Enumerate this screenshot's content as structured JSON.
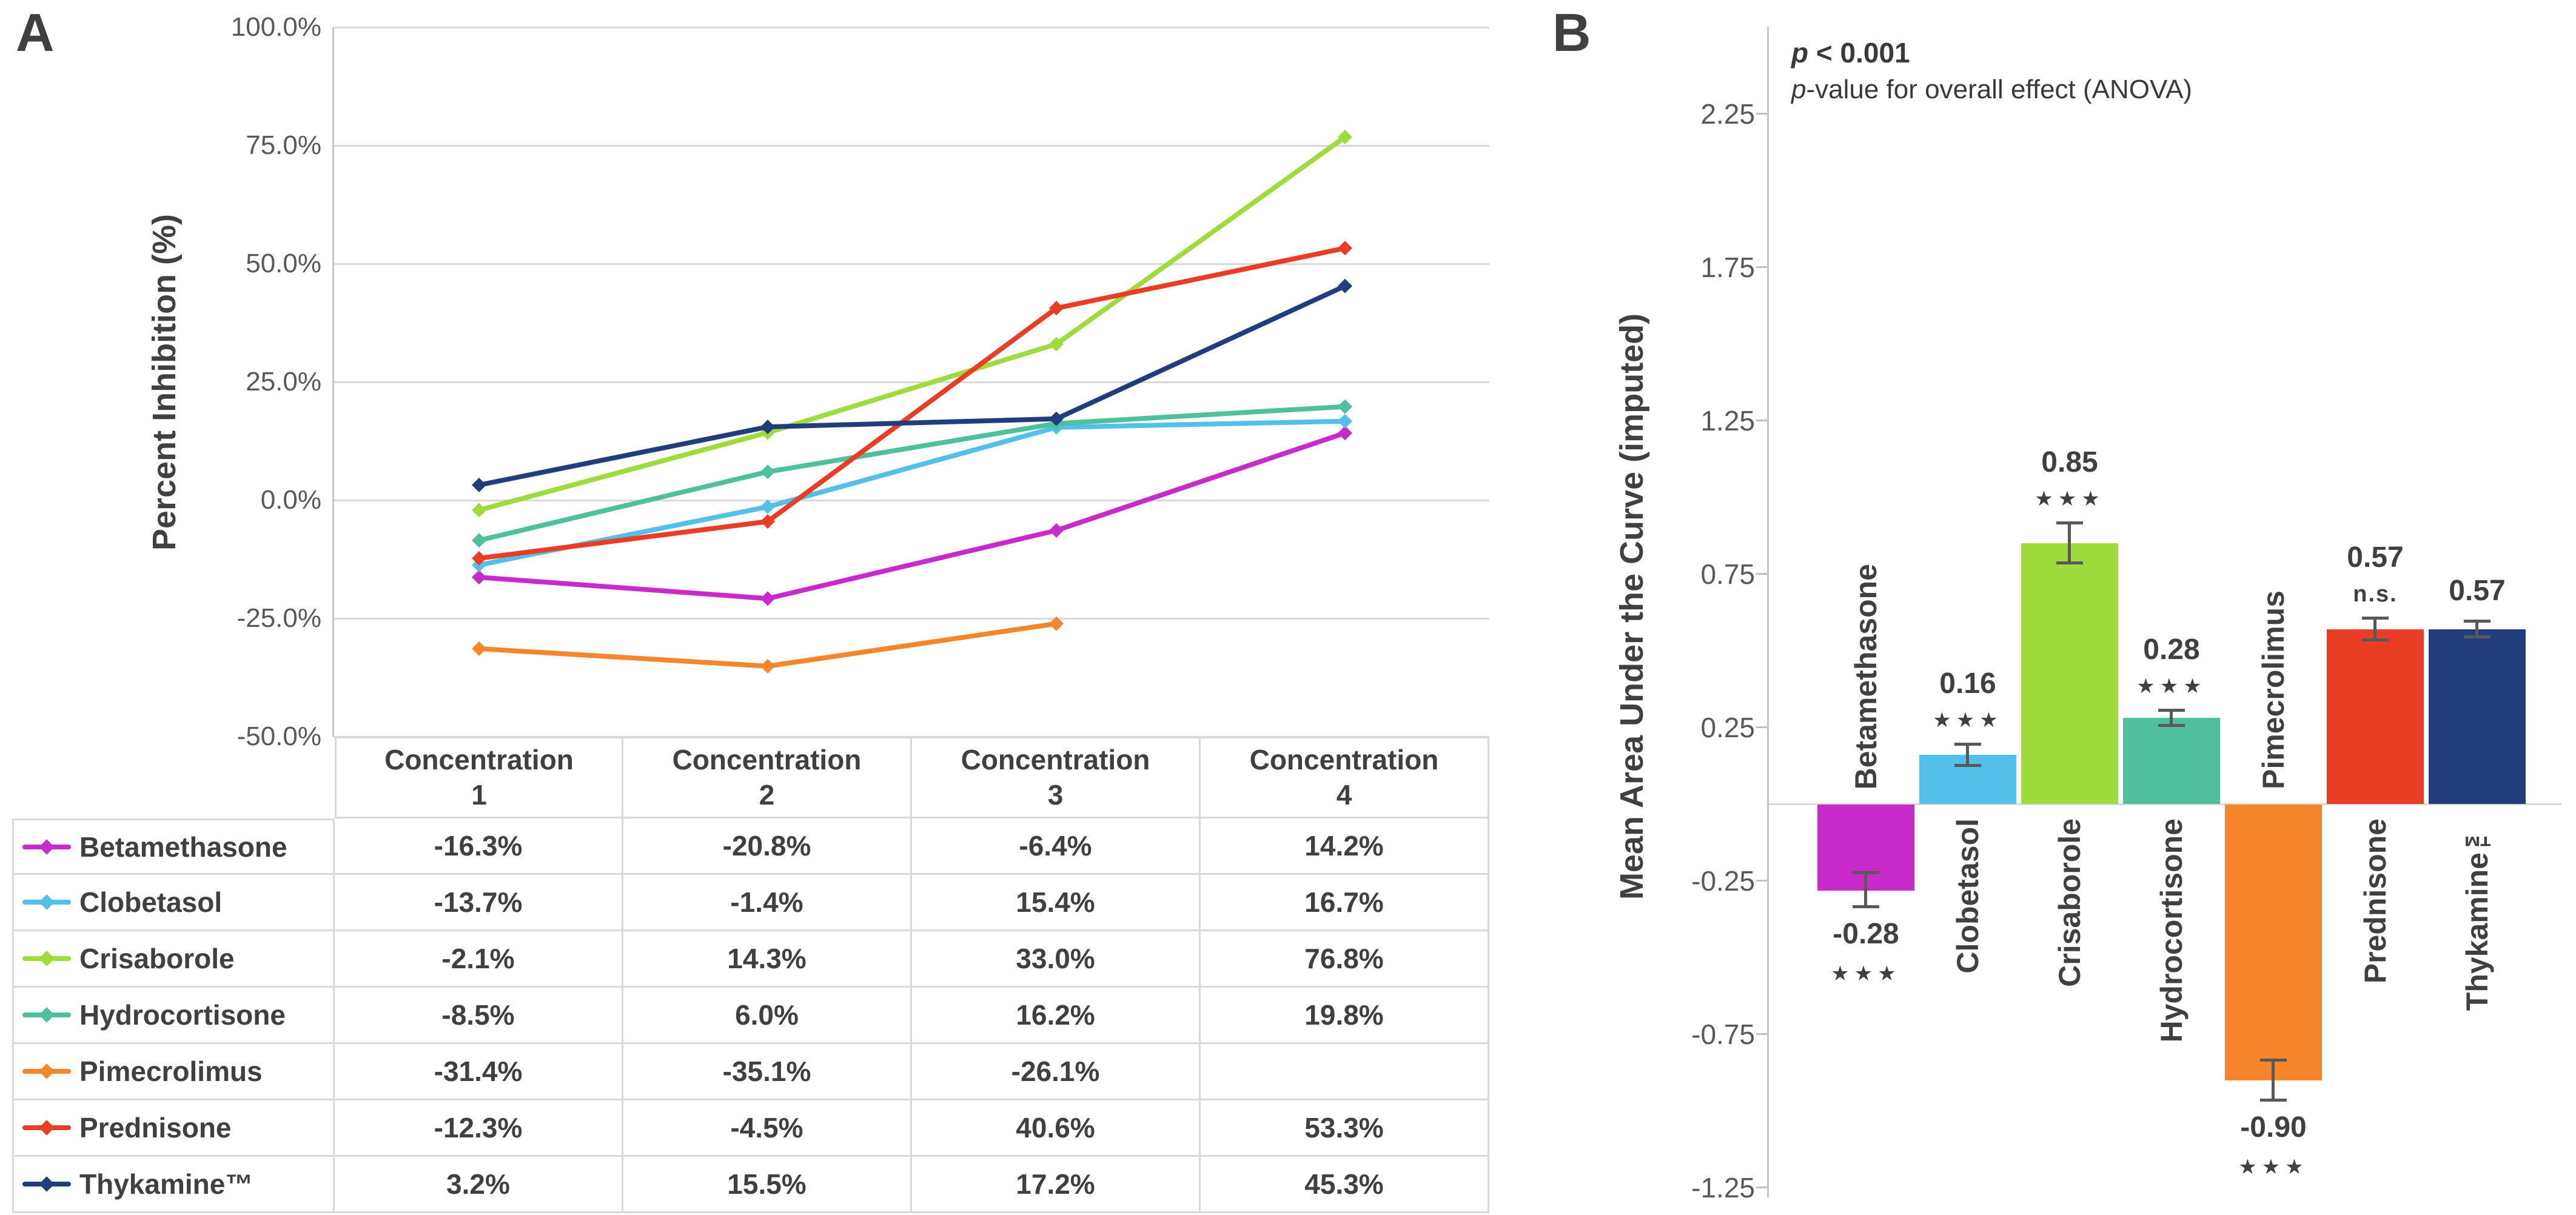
{
  "figure": {
    "panelA": {
      "label": "A",
      "y_axis_title": "Percent Inhibition (%)",
      "y_tick_labels": [
        "100.0%",
        "75.0%",
        "50.0%",
        "25.0%",
        "0.0%",
        "-25.0%",
        "-50.0%"
      ]
    },
    "panelB": {
      "label": "B",
      "p_headline": {
        "italic_part": "p",
        "rest": " < 0.001"
      },
      "p_subline": {
        "italic_part": "p",
        "rest": "-value for overall effect (ANOVA)"
      },
      "y_axis_title": "Mean Area Under the Curve (imputed)",
      "y_tick_labels": [
        "2.25",
        "1.75",
        "1.25",
        "0.75",
        "0.25",
        "-0.25",
        "-0.75",
        "-1.25"
      ]
    }
  },
  "chart_data": [
    {
      "panel": "A",
      "type": "line",
      "title": "",
      "xlabel": "",
      "ylabel": "Percent Inhibition (%)",
      "categories": [
        "Concentration 1",
        "Concentration 2",
        "Concentration 3",
        "Concentration 4"
      ],
      "ylim": [
        -50,
        100
      ],
      "y_ticks_percent": [
        100,
        75,
        50,
        25,
        0,
        -25,
        -50
      ],
      "grid": true,
      "legend_position": "table-left",
      "series": [
        {
          "name": "Betamethasone",
          "color": "#C92BCB",
          "values": [
            -16.3,
            -20.8,
            -6.4,
            14.2
          ],
          "display": [
            "-16.3%",
            "-20.8%",
            "-6.4%",
            "14.2%"
          ]
        },
        {
          "name": "Clobetasol",
          "color": "#52C0E8",
          "values": [
            -13.7,
            -1.4,
            15.4,
            16.7
          ],
          "display": [
            "-13.7%",
            "-1.4%",
            "15.4%",
            "16.7%"
          ]
        },
        {
          "name": "Crisaborole",
          "color": "#9EDB3C",
          "values": [
            -2.1,
            14.3,
            33.0,
            76.8
          ],
          "display": [
            "-2.1%",
            "14.3%",
            "33.0%",
            "76.8%"
          ]
        },
        {
          "name": "Hydrocortisone",
          "color": "#4FBF9D",
          "values": [
            -8.5,
            6.0,
            16.2,
            19.8
          ],
          "display": [
            "-8.5%",
            "6.0%",
            "16.2%",
            "19.8%"
          ]
        },
        {
          "name": "Pimecrolimus",
          "color": "#F6862B",
          "values": [
            -31.4,
            -35.1,
            -26.1,
            null
          ],
          "display": [
            "-31.4%",
            "-35.1%",
            "-26.1%",
            ""
          ]
        },
        {
          "name": "Prednisone",
          "color": "#E93D26",
          "values": [
            -12.3,
            -4.5,
            40.6,
            53.3
          ],
          "display": [
            "-12.3%",
            "-4.5%",
            "40.6%",
            "53.3%"
          ]
        },
        {
          "name": "Thykamine™",
          "color": "#213D7C",
          "values": [
            3.2,
            15.5,
            17.2,
            45.3
          ],
          "display": [
            "3.2%",
            "15.5%",
            "17.2%",
            "45.3%"
          ]
        }
      ]
    },
    {
      "panel": "B",
      "type": "bar",
      "title": "",
      "xlabel": "",
      "ylabel": "Mean Area Under the Curve (imputed)",
      "ylim": [
        -1.25,
        2.25
      ],
      "y_ticks": [
        2.25,
        1.75,
        1.25,
        0.75,
        0.25,
        -0.25,
        -0.75,
        -1.25
      ],
      "annotation": {
        "headline": "p < 0.001",
        "subtext": "p-value for overall effect (ANOVA)"
      },
      "categories": [
        "Betamethasone",
        "Clobetasol",
        "Crisaborole",
        "Hydrocortisone",
        "Pimecrolimus",
        "Prednisone",
        "Thykamine™"
      ],
      "values": [
        -0.28,
        0.16,
        0.85,
        0.28,
        -0.9,
        0.57,
        0.57
      ],
      "value_labels": [
        "-0.28",
        "0.16",
        "0.85",
        "0.28",
        "-0.90",
        "0.57",
        "0.57"
      ],
      "significance": [
        "***",
        "***",
        "***",
        "***",
        "***",
        "n.s.",
        ""
      ],
      "error_bars_est": [
        0.06,
        0.04,
        0.07,
        0.03,
        0.07,
        0.04,
        0.03
      ],
      "colors": [
        "#C92BCB",
        "#52C0E8",
        "#9EDB3C",
        "#4FBF9D",
        "#F6862B",
        "#E93D26",
        "#213D7C"
      ]
    }
  ]
}
